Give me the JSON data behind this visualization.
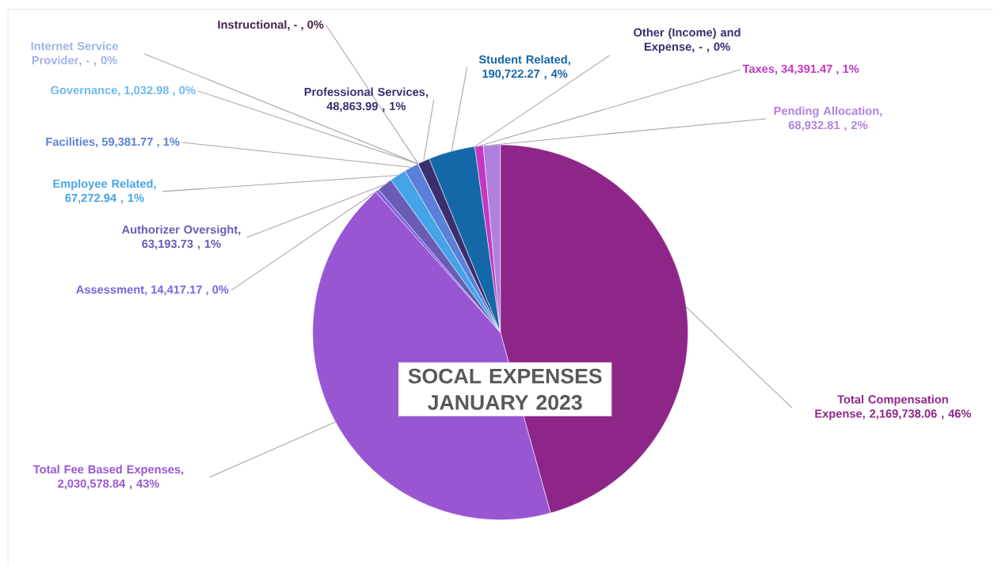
{
  "chart_data": {
    "type": "pie",
    "title": "SOCAL EXPENSES JANUARY 2023",
    "categories": [
      "Total Compensation Expense",
      "Total Fee Based Expenses",
      "Assessment",
      "Authorizer Oversight",
      "Employee Related",
      "Facilities",
      "Governance",
      "Internet Service Provider",
      "Instructional",
      "Professional Services",
      "Student Related",
      "Other (Income) and Expense",
      "Taxes",
      "Pending Allocation"
    ],
    "values": [
      2169738.06,
      2030578.84,
      14417.17,
      63193.73,
      67272.94,
      59381.77,
      1032.98,
      0,
      0,
      48863.99,
      190722.27,
      0,
      34391.47,
      68932.81
    ],
    "value_labels": [
      ", 2,169,738.06 , 46%",
      ", 2,030,578.84 , 43%",
      ", 14,417.17 , 0%",
      ", 63,193.73 , 1%",
      ", 67,272.94 , 1%",
      ", 59,381.77 , 1%",
      ", 1,032.98 , 0%",
      ", - , 0%",
      ", - , 0%",
      ", 48,863.99 , 1%",
      ", 190,722.27 , 4%",
      ", - , 0%",
      ", 34,391.47 , 1%",
      ", 68,932.81 , 2%"
    ],
    "colors": [
      "#8e2689",
      "#9956d2",
      "#7b62e0",
      "#6a5cb5",
      "#45a3e8",
      "#5b80d9",
      "#6fb8ee",
      "#9fb3e6",
      "#4a1f50",
      "#3a2f6e",
      "#1468a8",
      "#3b2d70",
      "#c238c2",
      "#b080de"
    ],
    "data_labels": true
  }
}
